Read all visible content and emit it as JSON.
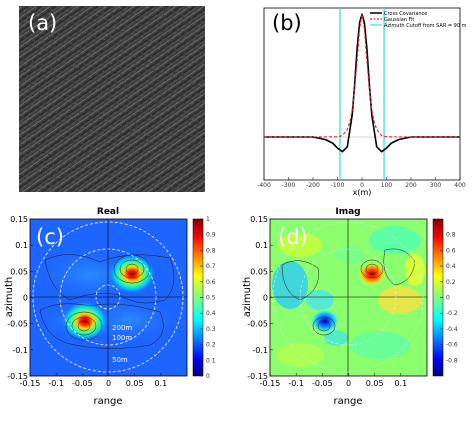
{
  "chart_data": [
    {
      "panel": "(a)",
      "type": "image",
      "background_color": "#3c3c3c"
    },
    {
      "panel": "(b)",
      "type": "line",
      "xlabel": "x(m)",
      "xlim": [
        -400,
        400
      ],
      "ylim": [
        -0.35,
        1.05
      ],
      "xticks": [
        "-400",
        "-300",
        "-200",
        "-100",
        "0",
        "100",
        "200",
        "300",
        "400"
      ],
      "grid": false,
      "legend_position": "top-right",
      "series": [
        {
          "name": "Cross Covariance",
          "color": "#000000",
          "style": "solid",
          "x": [
            -400,
            -300,
            -200,
            -150,
            -120,
            -100,
            -80,
            -60,
            -40,
            -30,
            -20,
            -10,
            0,
            10,
            20,
            30,
            40,
            60,
            80,
            100,
            120,
            150,
            200,
            300,
            400
          ],
          "y": [
            0,
            0,
            0,
            -0.02,
            -0.05,
            -0.09,
            -0.12,
            -0.08,
            0.18,
            0.42,
            0.72,
            0.93,
            1.0,
            0.93,
            0.72,
            0.42,
            0.18,
            -0.08,
            -0.12,
            -0.09,
            -0.05,
            -0.02,
            0,
            0,
            0
          ]
        },
        {
          "name": "Gaussian Fit",
          "color": "#d62728",
          "style": "dashed",
          "x": [
            -400,
            -200,
            -100,
            -80,
            -60,
            -50,
            -40,
            -30,
            -20,
            -10,
            0,
            10,
            20,
            30,
            40,
            50,
            60,
            80,
            100,
            200,
            400
          ],
          "y": [
            0,
            0,
            0.002,
            0.012,
            0.06,
            0.12,
            0.22,
            0.39,
            0.62,
            0.88,
            1.0,
            0.88,
            0.62,
            0.39,
            0.22,
            0.12,
            0.06,
            0.012,
            0.002,
            0,
            0
          ]
        }
      ],
      "vertical_lines": {
        "name": "Azimuth Cutoff from SAR = 90 m",
        "color": "#40e0e0",
        "x": [
          -90,
          90
        ]
      },
      "horizontal_line": {
        "y": 0,
        "color": "#aaaaaa"
      }
    },
    {
      "panel": "(c)",
      "type": "heatmap",
      "title": "Real",
      "xlabel": "range",
      "ylabel": "azimuth",
      "xlim": [
        -0.15,
        0.15
      ],
      "ylim": [
        -0.15,
        0.15
      ],
      "xticks": [
        "-0.15",
        "-0.1",
        "-0.05",
        "0",
        "0.05",
        "0.1"
      ],
      "yticks": [
        "0.15",
        "0.1",
        "0.05",
        "0",
        "-0.05",
        "-0.1",
        "-0.15"
      ],
      "colorbar_range": [
        0,
        1
      ],
      "colorbar_ticks": [
        "1",
        "0.9",
        "0.8",
        "0.7",
        "0.6",
        "0.5",
        "0.4",
        "0.3",
        "0.2",
        "0.1",
        "0"
      ],
      "peaks": [
        {
          "x": 0.045,
          "y": 0.045,
          "value": 1.0
        },
        {
          "x": -0.045,
          "y": -0.045,
          "value": 1.0
        }
      ],
      "ring_labels": [
        "200m",
        "100m",
        "50m"
      ]
    },
    {
      "panel": "(d)",
      "type": "heatmap",
      "title": "Imag",
      "xlabel": "range",
      "ylabel": "azimuth",
      "xlim": [
        -0.15,
        0.15
      ],
      "ylim": [
        -0.15,
        0.15
      ],
      "xticks": [
        "-0.15",
        "-0.1",
        "-0.05",
        "0",
        "0.05",
        "0.1"
      ],
      "yticks": [
        "0.15",
        "0.1",
        "0.05",
        "0",
        "-0.05",
        "-0.1",
        "-0.15"
      ],
      "colorbar_range": [
        -1,
        1
      ],
      "colorbar_ticks": [
        "0.8",
        "0.6",
        "0.4",
        "0.2",
        "0",
        "-0.2",
        "-0.4",
        "-0.6",
        "-0.8"
      ],
      "peaks": [
        {
          "x": 0.045,
          "y": 0.045,
          "value": 0.9
        },
        {
          "x": -0.045,
          "y": -0.045,
          "value": -0.9
        }
      ]
    }
  ]
}
